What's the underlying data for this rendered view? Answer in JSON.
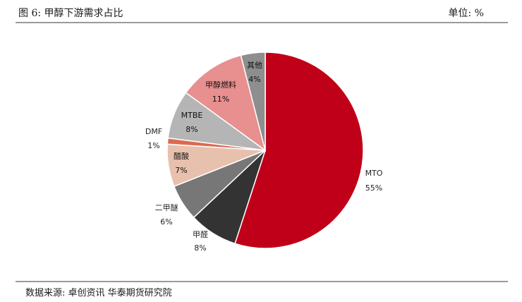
{
  "header": {
    "title": "图 6:  甲醇下游需求占比",
    "unit": "单位:  %"
  },
  "footer": {
    "source": "数据来源:  卓创资讯  华泰期货研究院"
  },
  "chart_data": {
    "type": "pie",
    "title": "",
    "slices": [
      {
        "label": "MTO",
        "value": 55,
        "display": "55%",
        "color": "#c00018"
      },
      {
        "label": "甲醛",
        "value": 8,
        "display": "8%",
        "color": "#333333"
      },
      {
        "label": "二甲醚",
        "value": 6,
        "display": "6%",
        "color": "#777777"
      },
      {
        "label": "醋酸",
        "value": 7,
        "display": "7%",
        "color": "#e8c1ae"
      },
      {
        "label": "DMF",
        "value": 1,
        "display": "1%",
        "color": "#db6a4e"
      },
      {
        "label": "MTBE",
        "value": 8,
        "display": "8%",
        "color": "#b5b5b5"
      },
      {
        "label": "甲醇燃料",
        "value": 11,
        "display": "11%",
        "color": "#e88f8f"
      },
      {
        "label": "其他",
        "value": 4,
        "display": "4%",
        "color": "#8e8e8e"
      }
    ],
    "legend": "none"
  }
}
